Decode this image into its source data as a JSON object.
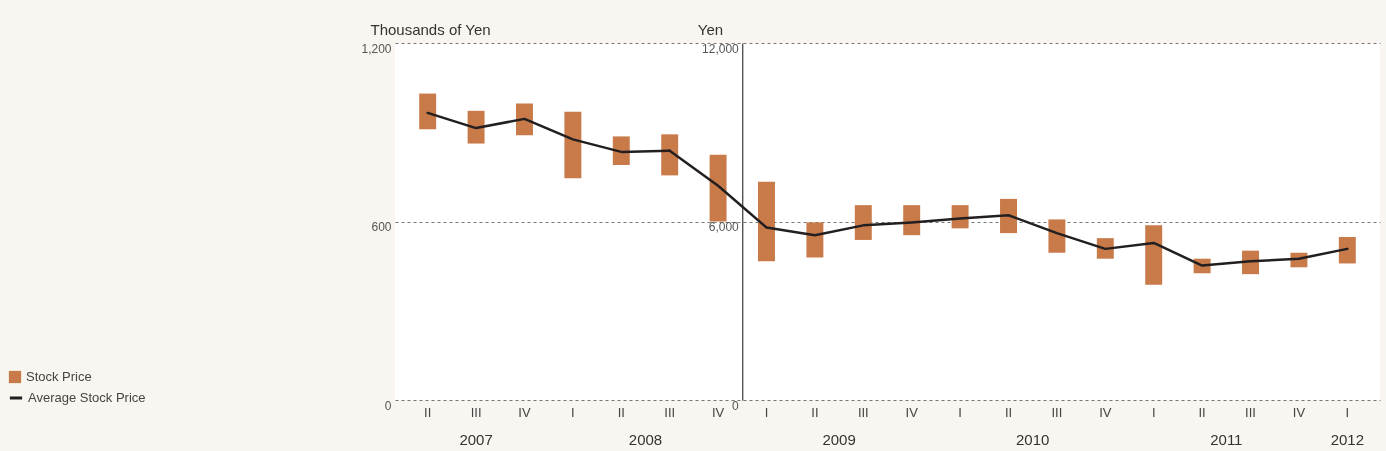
{
  "chart_data": {
    "type": "bar",
    "categories": [
      "II",
      "III",
      "IV",
      "I",
      "II",
      "III",
      "IV",
      "I",
      "II",
      "III",
      "IV",
      "I",
      "II",
      "III",
      "IV",
      "I",
      "II",
      "III",
      "IV",
      "I"
    ],
    "series": [
      {
        "name": "Stock Price",
        "color": "#c87a48",
        "axis": "y",
        "base": [
          910,
          862,
          890,
          745,
          790,
          755,
          600,
          null,
          null,
          null,
          null,
          null,
          null,
          null,
          null,
          null,
          null,
          null,
          null,
          null
        ],
        "values": [
          120,
          110,
          107,
          224,
          96,
          138,
          224,
          null,
          null,
          null,
          null,
          null,
          null,
          null,
          null,
          null,
          null,
          null,
          null,
          null
        ]
      },
      {
        "color": "#c87a48",
        "axis": "y2",
        "base": [
          null,
          null,
          null,
          null,
          null,
          null,
          null,
          4660,
          4790,
          5380,
          5540,
          5770,
          5610,
          4950,
          4750,
          3870,
          4260,
          4230,
          4460,
          4590
        ],
        "values": [
          null,
          null,
          null,
          null,
          null,
          null,
          null,
          2680,
          1180,
          1170,
          1010,
          780,
          1150,
          1120,
          690,
          2000,
          490,
          790,
          490,
          890
        ]
      },
      {
        "name": "Average Stock Price",
        "type": "line",
        "color": "#231f20",
        "axis": "y",
        "values": [
          965,
          914,
          945,
          876,
          834,
          838,
          null,
          null,
          null,
          null,
          null,
          null,
          null,
          null,
          null,
          null,
          null,
          null,
          null,
          null
        ]
      },
      {
        "type": "line",
        "color": "#231f20",
        "axis": "y2",
        "values": [
          null,
          null,
          null,
          null,
          null,
          8380,
          7200,
          5800,
          5540,
          5870,
          5970,
          6100,
          6210,
          5610,
          5080,
          5280,
          4520,
          4660,
          4750,
          5080
        ]
      }
    ],
    "ylabel": "Thousands of Yen",
    "y2label": "Yen",
    "ylim": [
      0,
      1200
    ],
    "yticks": [
      0,
      600,
      {
        "value": 1200,
        "label": "1,200"
      }
    ],
    "y2lim": [
      0,
      12000
    ],
    "y2ticks": [
      0,
      {
        "value": 6000,
        "label": "6,000"
      },
      {
        "value": 12000,
        "label": "12,000"
      }
    ],
    "grid": "y",
    "legend": "bottom left",
    "annotations": [
      "2007",
      "2008",
      "2009",
      "2010",
      "2011",
      "2012"
    ]
  }
}
